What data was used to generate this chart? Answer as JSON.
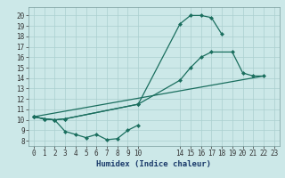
{
  "xlabel": "Humidex (Indice chaleur)",
  "bg_color": "#cce8e8",
  "grid_color": "#aacfcf",
  "line_color": "#1a6e5e",
  "xlim": [
    -0.5,
    23.5
  ],
  "ylim": [
    7.5,
    20.8
  ],
  "yticks": [
    8,
    9,
    10,
    11,
    12,
    13,
    14,
    15,
    16,
    17,
    18,
    19,
    20
  ],
  "xticks": [
    0,
    1,
    2,
    3,
    4,
    5,
    6,
    7,
    8,
    9,
    10,
    14,
    15,
    16,
    17,
    18,
    19,
    20,
    21,
    22,
    23
  ],
  "line1_x": [
    0,
    1,
    2,
    3,
    4,
    5,
    6,
    7,
    8,
    9,
    10
  ],
  "line1_y": [
    10.3,
    10.1,
    10.0,
    8.9,
    8.6,
    8.3,
    8.6,
    8.1,
    8.2,
    9.0,
    9.5
  ],
  "line2_x": [
    0,
    1,
    2,
    3,
    10,
    14,
    15,
    16,
    17,
    18
  ],
  "line2_y": [
    10.3,
    10.1,
    10.0,
    10.1,
    11.5,
    19.2,
    20.0,
    20.0,
    19.8,
    18.2
  ],
  "line3_x": [
    0,
    1,
    2,
    3,
    10,
    14,
    15,
    16,
    17,
    19,
    20,
    21,
    22
  ],
  "line3_y": [
    10.3,
    10.1,
    10.0,
    10.1,
    11.5,
    13.8,
    15.0,
    16.0,
    16.5,
    16.5,
    14.5,
    14.2,
    14.2
  ],
  "line4_x": [
    0,
    22
  ],
  "line4_y": [
    10.3,
    14.2
  ],
  "tick_fontsize": 5.5,
  "xlabel_fontsize": 6.5
}
